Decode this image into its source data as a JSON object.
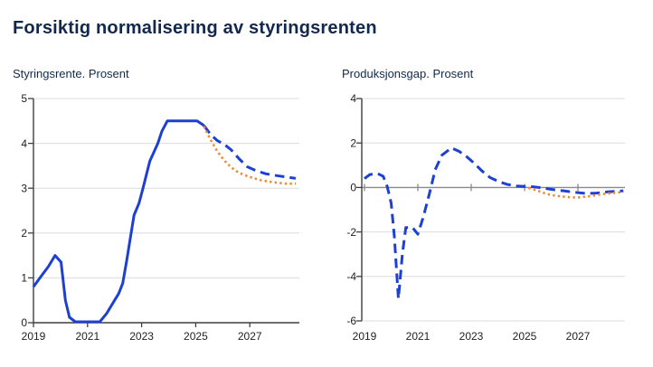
{
  "page": {
    "title": "Forsiktig normalisering av styringsrenten"
  },
  "colors": {
    "line_blue": "#1e40d2",
    "line_orange": "#ed8b33",
    "heading_navy": "#12294d",
    "axis": "#3f3f3f",
    "zero_line": "#8a8a8a",
    "grid": "#dcdcdc",
    "tick_text": "#1f1f1f"
  },
  "chart_data": [
    {
      "type": "line",
      "title": "Styringsrente. Prosent",
      "xlabel": "",
      "ylabel": "",
      "xlim": [
        2019,
        2028.8
      ],
      "ylim": [
        0,
        5
      ],
      "yticks": [
        0,
        1,
        2,
        3,
        4,
        5
      ],
      "xticks": [
        2019,
        2021,
        2023,
        2025,
        2027
      ],
      "grid": true,
      "legend": "none",
      "series": [
        {
          "id": "solid-blue",
          "style": "solid",
          "color": "#1e40d2",
          "points": [
            [
              2019.0,
              0.8
            ],
            [
              2019.3,
              1.05
            ],
            [
              2019.55,
              1.25
            ],
            [
              2019.8,
              1.5
            ],
            [
              2020.02,
              1.35
            ],
            [
              2020.18,
              0.5
            ],
            [
              2020.33,
              0.12
            ],
            [
              2020.55,
              0.02
            ],
            [
              2021.45,
              0.02
            ],
            [
              2021.7,
              0.2
            ],
            [
              2021.95,
              0.45
            ],
            [
              2022.15,
              0.65
            ],
            [
              2022.3,
              0.88
            ],
            [
              2022.45,
              1.4
            ],
            [
              2022.6,
              1.95
            ],
            [
              2022.72,
              2.4
            ],
            [
              2022.9,
              2.66
            ],
            [
              2023.05,
              3.0
            ],
            [
              2023.3,
              3.6
            ],
            [
              2023.6,
              4.0
            ],
            [
              2023.75,
              4.27
            ],
            [
              2023.95,
              4.5
            ],
            [
              2025.05,
              4.5
            ],
            [
              2025.3,
              4.4
            ]
          ]
        },
        {
          "id": "dashed-blue",
          "style": "dashed",
          "color": "#1e40d2",
          "points": [
            [
              2025.3,
              4.4
            ],
            [
              2025.55,
              4.2
            ],
            [
              2025.8,
              4.06
            ],
            [
              2026.05,
              3.98
            ],
            [
              2026.3,
              3.86
            ],
            [
              2026.6,
              3.66
            ],
            [
              2026.9,
              3.48
            ],
            [
              2027.2,
              3.4
            ],
            [
              2027.6,
              3.32
            ],
            [
              2028.0,
              3.28
            ],
            [
              2028.35,
              3.25
            ],
            [
              2028.7,
              3.22
            ]
          ]
        },
        {
          "id": "dotted-orange",
          "style": "dotted",
          "color": "#ed8b33",
          "points": [
            [
              2025.3,
              4.38
            ],
            [
              2025.55,
              4.08
            ],
            [
              2025.8,
              3.82
            ],
            [
              2026.05,
              3.62
            ],
            [
              2026.3,
              3.47
            ],
            [
              2026.6,
              3.34
            ],
            [
              2027.0,
              3.25
            ],
            [
              2027.4,
              3.18
            ],
            [
              2027.9,
              3.13
            ],
            [
              2028.35,
              3.1
            ],
            [
              2028.7,
              3.1
            ]
          ]
        }
      ]
    },
    {
      "type": "line",
      "title": "Produksjonsgap. Prosent",
      "xlabel": "",
      "ylabel": "",
      "xlim": [
        2019,
        2028.8
      ],
      "ylim": [
        -6,
        4
      ],
      "yticks": [
        -6,
        -4,
        -2,
        0,
        2,
        4
      ],
      "xticks": [
        2019,
        2021,
        2023,
        2025,
        2027
      ],
      "grid": true,
      "legend": "none",
      "series": [
        {
          "id": "dashed-blue",
          "style": "dashed",
          "color": "#1e40d2",
          "points": [
            [
              2019.0,
              0.4
            ],
            [
              2019.2,
              0.58
            ],
            [
              2019.5,
              0.62
            ],
            [
              2019.7,
              0.5
            ],
            [
              2019.85,
              0.05
            ],
            [
              2020.0,
              -0.7
            ],
            [
              2020.12,
              -2.2
            ],
            [
              2020.27,
              -5.0
            ],
            [
              2020.42,
              -3.0
            ],
            [
              2020.55,
              -1.8
            ],
            [
              2020.8,
              -1.8
            ],
            [
              2021.0,
              -2.1
            ],
            [
              2021.2,
              -1.35
            ],
            [
              2021.45,
              -0.2
            ],
            [
              2021.65,
              0.8
            ],
            [
              2021.9,
              1.45
            ],
            [
              2022.26,
              1.78
            ],
            [
              2022.55,
              1.62
            ],
            [
              2022.8,
              1.42
            ],
            [
              2023.1,
              1.1
            ],
            [
              2023.4,
              0.75
            ],
            [
              2023.7,
              0.45
            ],
            [
              2024.0,
              0.28
            ],
            [
              2024.35,
              0.14
            ],
            [
              2024.7,
              0.07
            ],
            [
              2025.0,
              0.05
            ],
            [
              2025.35,
              0.03
            ],
            [
              2025.7,
              -0.03
            ],
            [
              2026.1,
              -0.1
            ],
            [
              2026.5,
              -0.16
            ],
            [
              2026.9,
              -0.22
            ],
            [
              2027.3,
              -0.27
            ],
            [
              2027.7,
              -0.25
            ],
            [
              2028.1,
              -0.2
            ],
            [
              2028.45,
              -0.17
            ],
            [
              2028.7,
              -0.15
            ]
          ]
        },
        {
          "id": "dotted-orange",
          "style": "dotted",
          "color": "#ed8b33",
          "points": [
            [
              2025.15,
              -0.02
            ],
            [
              2025.5,
              -0.15
            ],
            [
              2025.85,
              -0.3
            ],
            [
              2026.2,
              -0.38
            ],
            [
              2026.6,
              -0.43
            ],
            [
              2027.0,
              -0.45
            ],
            [
              2027.4,
              -0.4
            ],
            [
              2027.8,
              -0.32
            ],
            [
              2028.2,
              -0.26
            ],
            [
              2028.7,
              -0.2
            ]
          ]
        }
      ]
    }
  ]
}
